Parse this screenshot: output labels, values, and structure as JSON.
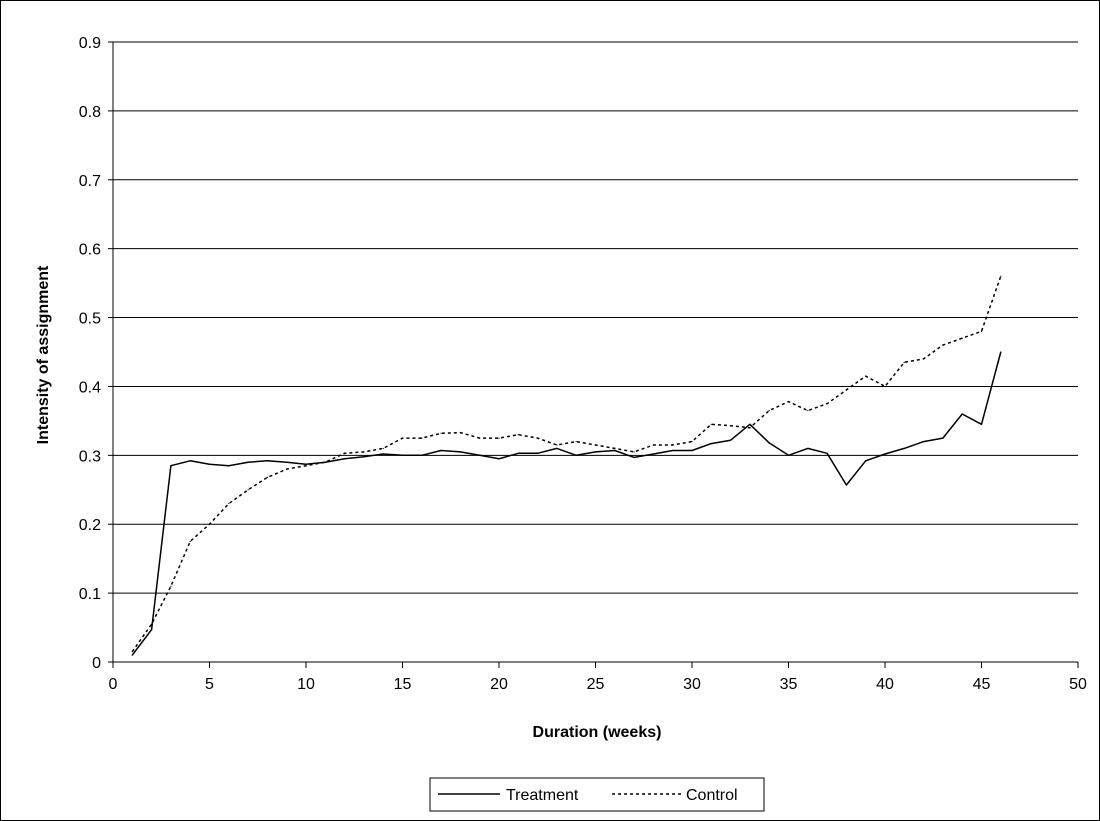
{
  "chart_data": {
    "type": "line",
    "title": "",
    "xlabel": "Duration (weeks)",
    "ylabel": "Intensity of assignment",
    "xlim": [
      0,
      50
    ],
    "ylim": [
      0,
      0.9
    ],
    "x_ticks": [
      "0",
      "5",
      "10",
      "15",
      "20",
      "25",
      "30",
      "35",
      "40",
      "45",
      "50"
    ],
    "y_ticks": [
      "0",
      "0.1",
      "0.2",
      "0.3",
      "0.4",
      "0.5",
      "0.6",
      "0.7",
      "0.8",
      "0.9"
    ],
    "grid": "horizontal",
    "legend_position": "bottom",
    "series": [
      {
        "name": "Treatment",
        "style": "solid",
        "color": "#000000",
        "x": [
          1,
          2,
          3,
          4,
          5,
          6,
          7,
          8,
          9,
          10,
          11,
          12,
          13,
          14,
          15,
          16,
          17,
          18,
          19,
          20,
          21,
          22,
          23,
          24,
          25,
          26,
          27,
          28,
          29,
          30,
          31,
          32,
          33,
          34,
          35,
          36,
          37,
          38,
          39,
          40,
          41,
          42,
          43,
          44,
          45,
          46
        ],
        "values": [
          0.01,
          0.047,
          0.285,
          0.292,
          0.287,
          0.285,
          0.29,
          0.292,
          0.29,
          0.287,
          0.29,
          0.295,
          0.298,
          0.302,
          0.3,
          0.3,
          0.307,
          0.305,
          0.3,
          0.295,
          0.303,
          0.303,
          0.31,
          0.3,
          0.305,
          0.307,
          0.297,
          0.302,
          0.307,
          0.307,
          0.317,
          0.322,
          0.345,
          0.318,
          0.3,
          0.31,
          0.303,
          0.257,
          0.292,
          0.302,
          0.31,
          0.32,
          0.325,
          0.36,
          0.345,
          0.45
        ]
      },
      {
        "name": "Control",
        "style": "dotted",
        "color": "#000000",
        "x": [
          1,
          2,
          3,
          4,
          5,
          6,
          7,
          8,
          9,
          10,
          11,
          12,
          13,
          14,
          15,
          16,
          17,
          18,
          19,
          20,
          21,
          22,
          23,
          24,
          25,
          26,
          27,
          28,
          29,
          30,
          31,
          32,
          33,
          34,
          35,
          36,
          37,
          38,
          39,
          40,
          41,
          42,
          43,
          44,
          45,
          46
        ],
        "values": [
          0.015,
          0.055,
          0.11,
          0.175,
          0.2,
          0.23,
          0.25,
          0.268,
          0.28,
          0.285,
          0.29,
          0.303,
          0.305,
          0.31,
          0.325,
          0.325,
          0.332,
          0.333,
          0.325,
          0.325,
          0.33,
          0.325,
          0.315,
          0.32,
          0.315,
          0.31,
          0.305,
          0.315,
          0.315,
          0.32,
          0.345,
          0.343,
          0.34,
          0.365,
          0.378,
          0.365,
          0.375,
          0.395,
          0.415,
          0.4,
          0.435,
          0.44,
          0.46,
          0.47,
          0.48,
          0.56
        ]
      }
    ]
  }
}
